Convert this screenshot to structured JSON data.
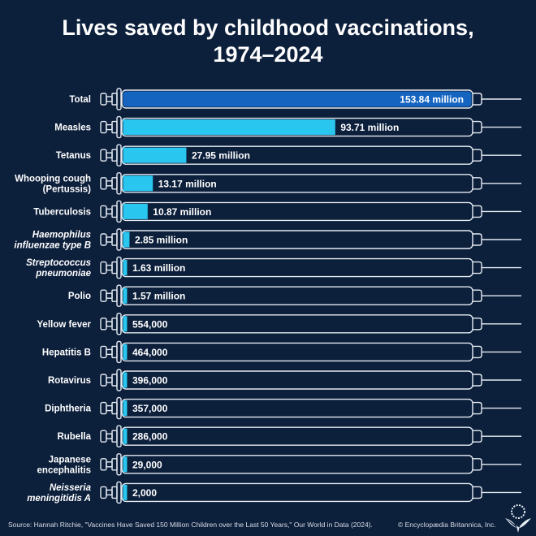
{
  "chart_data": {
    "type": "bar",
    "orientation": "horizontal",
    "title": "Lives saved by childhood vaccinations, 1974–2024",
    "title_lines": [
      "Lives saved by childhood vaccinations,",
      "1974–2024"
    ],
    "categories": [
      {
        "label": [
          "Total"
        ],
        "italic": false
      },
      {
        "label": [
          "Measles"
        ],
        "italic": false
      },
      {
        "label": [
          "Tetanus"
        ],
        "italic": false
      },
      {
        "label": [
          "Whooping cough",
          "(Pertussis)"
        ],
        "italic": false
      },
      {
        "label": [
          "Tuberculosis"
        ],
        "italic": false
      },
      {
        "label": [
          "Haemophilus",
          "influenzae type B"
        ],
        "italic": true
      },
      {
        "label": [
          "Streptococcus",
          "pneumoniae"
        ],
        "italic": true
      },
      {
        "label": [
          "Polio"
        ],
        "italic": false
      },
      {
        "label": [
          "Yellow fever"
        ],
        "italic": false
      },
      {
        "label": [
          "Hepatitis B"
        ],
        "italic": false
      },
      {
        "label": [
          "Rotavirus"
        ],
        "italic": false
      },
      {
        "label": [
          "Diphtheria"
        ],
        "italic": false
      },
      {
        "label": [
          "Rubella"
        ],
        "italic": false
      },
      {
        "label": [
          "Japanese",
          "encephalitis"
        ],
        "italic": false
      },
      {
        "label": [
          "Neisseria",
          "meningitidis A"
        ],
        "italic": true
      }
    ],
    "values": [
      153840000,
      93710000,
      27950000,
      13170000,
      10870000,
      2850000,
      1630000,
      1570000,
      554000,
      464000,
      396000,
      357000,
      286000,
      29000,
      2000
    ],
    "value_labels": [
      "153.84 million",
      "93.71 million",
      "27.95 million",
      "13.17 million",
      "10.87 million",
      "2.85 million",
      "1.63 million",
      "1.57 million",
      "554,000",
      "464,000",
      "396,000",
      "357,000",
      "286,000",
      "29,000",
      "2,000"
    ],
    "xlim": [
      0,
      153840000
    ],
    "grid": false,
    "colors": {
      "background": "#0c1f3b",
      "total_bar": "#1565c0",
      "bar": "#29c6f0",
      "outline": "#e6ecf3"
    }
  },
  "footer": {
    "source": "Source: Hannah Ritchie, \"Vaccines Have Saved 150 Million Children over the Last 50 Years,\" Our World in Data (2024).",
    "copyright": "© Encyclopædia Britannica, Inc."
  }
}
